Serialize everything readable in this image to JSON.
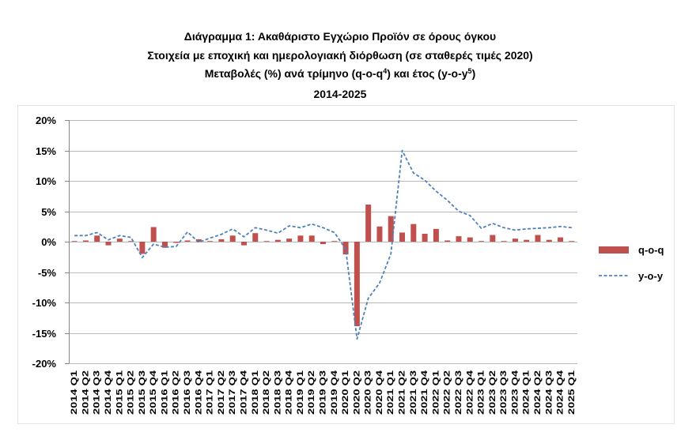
{
  "chart_data": {
    "type": "bar",
    "title": "Διάγραμμα 1: Ακαθάριστο Εγχώριο Προϊόν σε όρους όγκου",
    "subtitle": "Στοιχεία με εποχική και ημερολογιακή διόρθωση (σε σταθερές τιμές 2020)",
    "subtitle2": {
      "text_a": "Μεταβολές (%) ανά τρίμηνο (q-o-q",
      "sup_a": "4",
      "text_b": ") και έτος (y-o-y",
      "sup_b": "5",
      "text_c": ")"
    },
    "subtitle3": "2014-2025",
    "ylim": [
      -20,
      20
    ],
    "yticks": [
      20,
      15,
      10,
      5,
      0,
      -5,
      -10,
      -15,
      -20
    ],
    "ytick_labels": [
      "20%",
      "15%",
      "10%",
      "5%",
      "0%",
      "-5%",
      "-10%",
      "-15%",
      "-20%"
    ],
    "grid": true,
    "legend": "right",
    "categories": [
      "2014 Q1",
      "2014 Q2",
      "2014 Q3",
      "2014 Q4",
      "2015 Q1",
      "2015 Q2",
      "2015 Q3",
      "2015 Q4",
      "2016 Q1",
      "2016 Q2",
      "2016 Q3",
      "2016 Q4",
      "2017 Q1",
      "2017 Q2",
      "2017 Q3",
      "2017 Q4",
      "2018 Q1",
      "2018 Q2",
      "2018 Q3",
      "2018 Q4",
      "2019 Q1",
      "2019 Q2",
      "2019 Q3",
      "2019 Q4",
      "2020 Q1",
      "2020 Q2",
      "2020 Q3",
      "2020 Q4",
      "2021 Q1",
      "2021 Q2",
      "2021 Q3",
      "2021 Q4",
      "2022 Q1",
      "2022 Q2",
      "2022 Q3",
      "2022 Q4",
      "2023 Q1",
      "2023 Q2",
      "2023 Q3",
      "2023 Q4",
      "2024 Q1",
      "2024 Q2",
      "2024 Q3",
      "2024 Q4",
      "2025 Q1"
    ],
    "series": [
      {
        "name": "q-o-q",
        "type": "bar",
        "color": "#C0504D",
        "values": [
          0.1,
          0.2,
          1.0,
          -0.6,
          0.5,
          0.1,
          -2.0,
          2.4,
          -1.0,
          -0.2,
          0.2,
          0.4,
          0.1,
          0.4,
          1.0,
          -0.6,
          1.4,
          0.1,
          0.3,
          0.5,
          1.0,
          1.0,
          -0.4,
          0.1,
          -2.1,
          -13.9,
          6.1,
          2.5,
          4.2,
          1.5,
          2.9,
          1.3,
          2.1,
          0.2,
          0.9,
          0.7,
          0.1,
          1.1,
          0.1,
          0.5,
          0.3,
          1.1,
          0.3,
          0.7,
          0.1
        ]
      },
      {
        "name": "y-o-y",
        "type": "line",
        "line_style": "dashed",
        "color": "#4F81BD",
        "values": [
          1.0,
          1.0,
          1.5,
          0.3,
          1.0,
          0.7,
          -2.6,
          -0.4,
          -0.9,
          -0.8,
          1.6,
          -0.1,
          0.6,
          1.2,
          2.1,
          0.8,
          2.3,
          1.9,
          1.4,
          2.6,
          2.3,
          2.9,
          2.3,
          1.5,
          -1.2,
          -16.0,
          -9.3,
          -6.8,
          -2.0,
          15.0,
          11.3,
          10.1,
          8.3,
          6.8,
          5.0,
          4.3,
          2.2,
          3.0,
          2.3,
          1.9,
          2.1,
          2.2,
          2.3,
          2.5,
          2.3
        ]
      }
    ]
  }
}
